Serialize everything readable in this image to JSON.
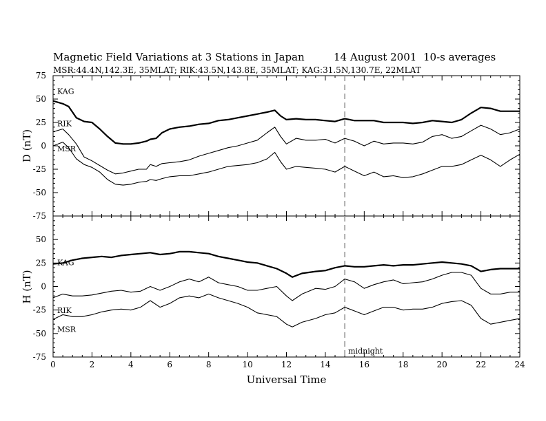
{
  "header": {
    "title": "Magnetic Field Variations at 3 Stations in Japan",
    "date": "14  August  2001",
    "averaging": "10-s averages",
    "subtitle": "MSR:44.4N,142.3E, 35MLAT;  RIK:43.5N,143.8E, 35MLAT;  KAG:31.5N,130.7E, 22MLAT"
  },
  "chart_data": [
    {
      "type": "line",
      "ylabel": "D (nT)",
      "xlim": [
        0,
        24
      ],
      "ylim": [
        -75,
        75
      ],
      "yticks": [
        75,
        50,
        25,
        0,
        -25,
        -50,
        -75
      ],
      "series": [
        {
          "name": "KAG",
          "x": [
            0,
            0.5,
            0.8,
            1.2,
            1.6,
            2.0,
            2.4,
            2.8,
            3.2,
            3.6,
            4.0,
            4.4,
            4.8,
            5.0,
            5.3,
            5.6,
            6.0,
            6.5,
            7.0,
            7.5,
            8.0,
            8.5,
            9.0,
            9.5,
            10.0,
            10.5,
            11.0,
            11.4,
            11.7,
            12.0,
            12.5,
            13.0,
            13.5,
            14.0,
            14.5,
            15.0,
            15.5,
            16.0,
            16.5,
            17.0,
            17.5,
            18.0,
            18.5,
            19.0,
            19.5,
            20.0,
            20.5,
            21.0,
            21.5,
            22.0,
            22.5,
            23.0,
            23.5,
            24.0
          ],
          "values": [
            48,
            45,
            42,
            30,
            26,
            25,
            18,
            10,
            3,
            2,
            2,
            3,
            5,
            7,
            8,
            14,
            18,
            20,
            21,
            23,
            24,
            27,
            28,
            30,
            32,
            34,
            36,
            38,
            32,
            28,
            29,
            28,
            28,
            27,
            26,
            29,
            27,
            27,
            27,
            25,
            25,
            25,
            24,
            25,
            27,
            26,
            25,
            28,
            35,
            41,
            40,
            37,
            37,
            37
          ]
        },
        {
          "name": "RIK",
          "x": [
            0,
            0.5,
            0.8,
            1.2,
            1.6,
            2.0,
            2.4,
            2.8,
            3.2,
            3.6,
            4.0,
            4.4,
            4.8,
            5.0,
            5.3,
            5.6,
            6.0,
            6.5,
            7.0,
            7.5,
            8.0,
            8.5,
            9.0,
            9.5,
            10.0,
            10.5,
            11.0,
            11.4,
            11.7,
            12.0,
            12.5,
            13.0,
            13.5,
            14.0,
            14.5,
            15.0,
            15.5,
            16.0,
            16.5,
            17.0,
            17.5,
            18.0,
            18.5,
            19.0,
            19.5,
            20.0,
            20.5,
            21.0,
            21.5,
            22.0,
            22.5,
            23.0,
            23.5,
            24.0
          ],
          "values": [
            15,
            18,
            12,
            2,
            -12,
            -16,
            -21,
            -26,
            -30,
            -29,
            -27,
            -25,
            -25,
            -20,
            -22,
            -19,
            -18,
            -17,
            -15,
            -11,
            -8,
            -5,
            -2,
            0,
            3,
            6,
            14,
            20,
            10,
            2,
            8,
            6,
            6,
            7,
            3,
            8,
            5,
            0,
            5,
            2,
            3,
            3,
            2,
            4,
            10,
            12,
            8,
            10,
            16,
            22,
            18,
            12,
            14,
            18
          ]
        },
        {
          "name": "MSR",
          "x": [
            0,
            0.5,
            0.8,
            1.2,
            1.6,
            2.0,
            2.4,
            2.8,
            3.2,
            3.6,
            4.0,
            4.4,
            4.8,
            5.0,
            5.3,
            5.6,
            6.0,
            6.5,
            7.0,
            7.5,
            8.0,
            8.5,
            9.0,
            9.5,
            10.0,
            10.5,
            11.0,
            11.4,
            11.7,
            12.0,
            12.5,
            13.0,
            13.5,
            14.0,
            14.5,
            15.0,
            15.5,
            16.0,
            16.5,
            17.0,
            17.5,
            18.0,
            18.5,
            19.0,
            19.5,
            20.0,
            20.5,
            21.0,
            21.5,
            22.0,
            22.5,
            23.0,
            23.5,
            24.0
          ],
          "values": [
            0,
            4,
            -2,
            -14,
            -20,
            -23,
            -28,
            -36,
            -41,
            -42,
            -41,
            -39,
            -38,
            -36,
            -37,
            -35,
            -33,
            -32,
            -32,
            -30,
            -28,
            -25,
            -22,
            -21,
            -20,
            -18,
            -14,
            -7,
            -17,
            -25,
            -22,
            -23,
            -24,
            -25,
            -28,
            -22,
            -27,
            -32,
            -28,
            -33,
            -32,
            -34,
            -33,
            -30,
            -26,
            -22,
            -22,
            -20,
            -15,
            -10,
            -15,
            -22,
            -15,
            -9
          ]
        }
      ]
    },
    {
      "type": "line",
      "ylabel": "H (nT)",
      "xlabel": "Universal Time",
      "xlim": [
        0,
        24
      ],
      "ylim": [
        -75,
        75
      ],
      "xticks": [
        0,
        2,
        4,
        6,
        8,
        10,
        12,
        14,
        16,
        18,
        20,
        22,
        24
      ],
      "yticks": [
        50,
        25,
        0,
        -25,
        -50,
        -75
      ],
      "annotation": {
        "text": "midnight",
        "x": 15
      },
      "series": [
        {
          "name": "KAG",
          "x": [
            0,
            0.5,
            1.0,
            1.5,
            2.0,
            2.5,
            3.0,
            3.5,
            4.0,
            4.5,
            5.0,
            5.5,
            6.0,
            6.5,
            7.0,
            7.5,
            8.0,
            8.5,
            9.0,
            9.5,
            10.0,
            10.5,
            11.0,
            11.5,
            12.0,
            12.3,
            12.8,
            13.5,
            14.0,
            14.5,
            15.0,
            15.5,
            16.0,
            16.5,
            17.0,
            17.5,
            18.0,
            18.5,
            19.0,
            19.5,
            20.0,
            20.5,
            21.0,
            21.5,
            22.0,
            22.5,
            23.0,
            23.5,
            24.0
          ],
          "values": [
            24,
            25,
            28,
            30,
            31,
            32,
            31,
            33,
            34,
            35,
            36,
            34,
            35,
            37,
            37,
            36,
            35,
            32,
            30,
            28,
            26,
            25,
            22,
            19,
            14,
            10,
            14,
            16,
            17,
            20,
            22,
            21,
            21,
            22,
            23,
            22,
            23,
            23,
            24,
            25,
            26,
            25,
            24,
            22,
            16,
            18,
            19,
            19,
            19
          ]
        },
        {
          "name": "RIK",
          "x": [
            0,
            0.5,
            1.0,
            1.5,
            2.0,
            2.5,
            3.0,
            3.5,
            4.0,
            4.5,
            5.0,
            5.5,
            6.0,
            6.5,
            7.0,
            7.5,
            8.0,
            8.5,
            9.0,
            9.5,
            10.0,
            10.5,
            11.0,
            11.5,
            12.0,
            12.3,
            12.8,
            13.5,
            14.0,
            14.5,
            15.0,
            15.5,
            16.0,
            16.5,
            17.0,
            17.5,
            18.0,
            18.5,
            19.0,
            19.5,
            20.0,
            20.5,
            21.0,
            21.5,
            22.0,
            22.5,
            23.0,
            23.5,
            24.0
          ],
          "values": [
            -12,
            -8,
            -10,
            -10,
            -9,
            -7,
            -5,
            -4,
            -6,
            -5,
            0,
            -4,
            0,
            5,
            8,
            5,
            10,
            4,
            2,
            0,
            -4,
            -4,
            -2,
            0,
            -10,
            -15,
            -8,
            -2,
            -3,
            0,
            8,
            5,
            -2,
            2,
            5,
            7,
            3,
            4,
            5,
            8,
            12,
            15,
            15,
            12,
            -2,
            -8,
            -8,
            -6,
            -6
          ]
        },
        {
          "name": "MSR",
          "x": [
            0,
            0.5,
            1.0,
            1.5,
            2.0,
            2.5,
            3.0,
            3.5,
            4.0,
            4.5,
            5.0,
            5.5,
            6.0,
            6.5,
            7.0,
            7.5,
            8.0,
            8.5,
            9.0,
            9.5,
            10.0,
            10.5,
            11.0,
            11.5,
            12.0,
            12.3,
            12.8,
            13.5,
            14.0,
            14.5,
            15.0,
            15.5,
            16.0,
            16.5,
            17.0,
            17.5,
            18.0,
            18.5,
            19.0,
            19.5,
            20.0,
            20.5,
            21.0,
            21.5,
            22.0,
            22.5,
            23.0,
            23.5,
            24.0
          ],
          "values": [
            -35,
            -30,
            -32,
            -32,
            -30,
            -27,
            -25,
            -24,
            -25,
            -22,
            -15,
            -22,
            -18,
            -12,
            -10,
            -12,
            -8,
            -12,
            -15,
            -18,
            -22,
            -28,
            -30,
            -32,
            -40,
            -43,
            -38,
            -34,
            -30,
            -28,
            -22,
            -26,
            -30,
            -26,
            -22,
            -22,
            -25,
            -24,
            -24,
            -22,
            -18,
            -16,
            -15,
            -20,
            -34,
            -40,
            -38,
            -36,
            -34
          ]
        }
      ]
    }
  ]
}
